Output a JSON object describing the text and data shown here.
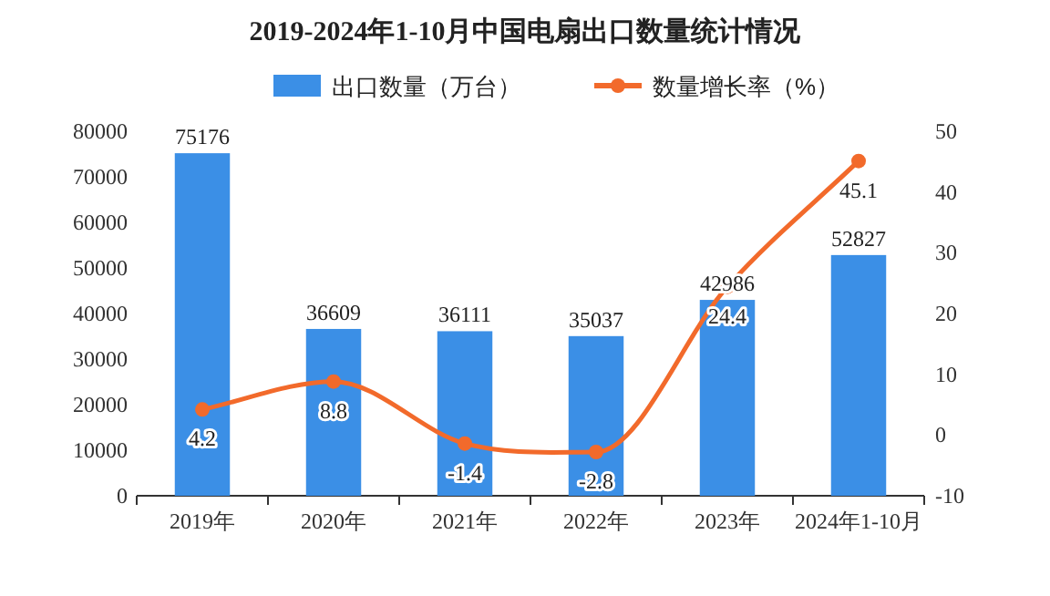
{
  "chart_data": {
    "type": "bar",
    "title": "2019-2024年1-10月中国电扇出口数量统计情况",
    "categories": [
      "2019年",
      "2020年",
      "2021年",
      "2022年",
      "2023年",
      "2024年1-10月"
    ],
    "series": [
      {
        "name": "出口数量（万台）",
        "color": "#3b8fe6",
        "values": [
          75176,
          36609,
          36111,
          35037,
          42986,
          52827
        ]
      },
      {
        "name": "数量增长率（%）",
        "type": "line",
        "axis": "y2",
        "color": "#f26a2b",
        "marker": "circle",
        "values": [
          4.2,
          8.8,
          -1.4,
          -2.8,
          24.4,
          45.1
        ]
      }
    ],
    "data_labels": true,
    "legend": "top",
    "grid": false,
    "ylim": [
      0,
      80000
    ],
    "yticks": [
      0,
      10000,
      20000,
      30000,
      40000,
      50000,
      60000,
      70000,
      80000
    ],
    "y2lim": [
      -10,
      50
    ],
    "y2ticks": [
      -10,
      0,
      10,
      20,
      30,
      40,
      50
    ]
  }
}
